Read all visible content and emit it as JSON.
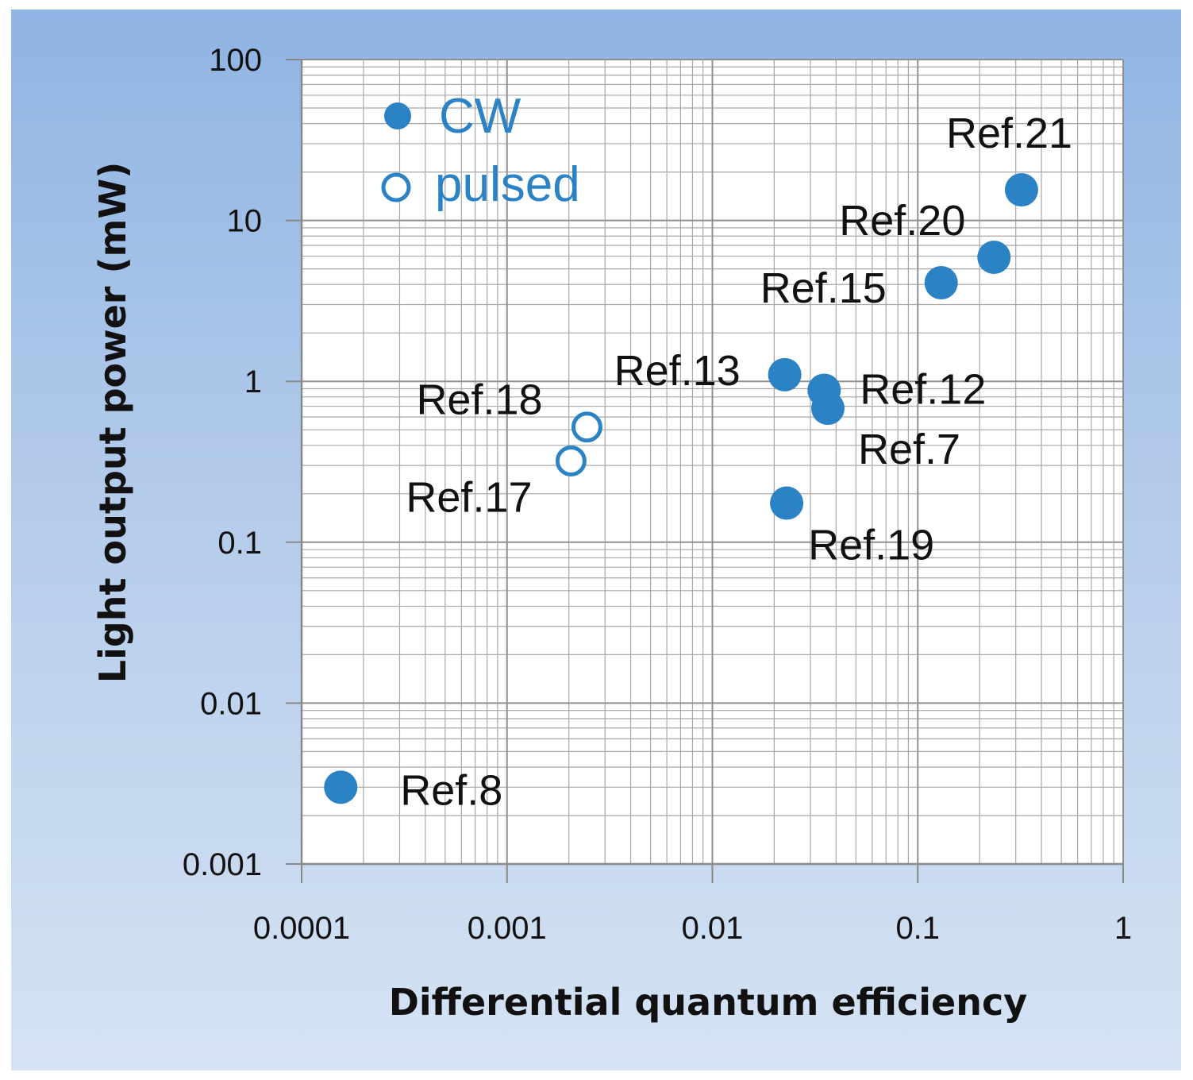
{
  "chart_data": {
    "type": "scatter",
    "title": "",
    "xlabel": "Differential quantum efficiency",
    "ylabel": "Light output power (mW)",
    "xscale": "log",
    "yscale": "log",
    "xlim": [
      0.0001,
      1
    ],
    "ylim": [
      0.001,
      100
    ],
    "grid": true,
    "legend_position": "top-left",
    "x_ticks": [
      "0.0001",
      "0.001",
      "0.01",
      "0.1",
      "1"
    ],
    "y_ticks": [
      "100",
      "10",
      "1",
      "0.1",
      "0.01",
      "0.001"
    ],
    "colors": {
      "marker": "#2b83c6",
      "grid": "#a8a8a8",
      "axis": "#888888"
    },
    "series": [
      {
        "name": "CW",
        "marker": "filled-circle",
        "points": [
          {
            "label": "Ref.21",
            "x": 0.32,
            "y": 15.5
          },
          {
            "label": "Ref.20",
            "x": 0.235,
            "y": 5.9
          },
          {
            "label": "Ref.15",
            "x": 0.13,
            "y": 4.1
          },
          {
            "label": "Ref.13",
            "x": 0.0225,
            "y": 1.1
          },
          {
            "label": "Ref.12",
            "x": 0.035,
            "y": 0.88
          },
          {
            "label": "Ref.7",
            "x": 0.0365,
            "y": 0.68
          },
          {
            "label": "Ref.19",
            "x": 0.023,
            "y": 0.175
          },
          {
            "label": "Ref.8",
            "x": 0.000155,
            "y": 0.003
          }
        ]
      },
      {
        "name": "pulsed",
        "marker": "open-circle",
        "points": [
          {
            "label": "Ref.18",
            "x": 0.00245,
            "y": 0.52
          },
          {
            "label": "Ref.17",
            "x": 0.00205,
            "y": 0.32
          }
        ]
      }
    ]
  }
}
